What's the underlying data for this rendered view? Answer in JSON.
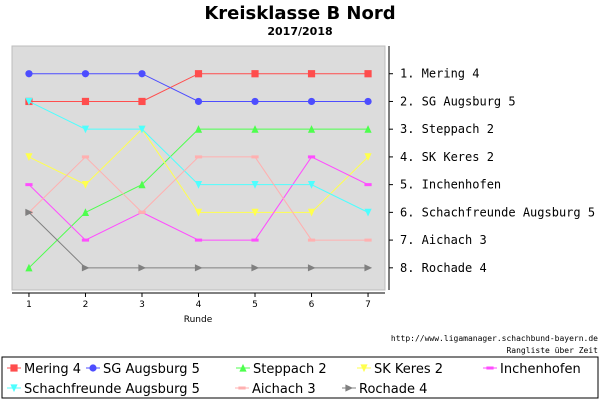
{
  "chart_data": {
    "type": "line",
    "title": "Kreisklasse B Nord",
    "subtitle": "2017/2018",
    "xlabel": "Runde",
    "x": [
      1,
      2,
      3,
      4,
      5,
      6,
      7
    ],
    "xlim": [
      0.7,
      7.3
    ],
    "ylim": [
      0,
      8.8
    ],
    "y_inverted": true,
    "grid": false,
    "legend_position": "bottom",
    "rank_labels": [
      "1. Mering 4",
      "2. SG Augsburg 5",
      "3. Steppach 2",
      "4. SK Keres 2",
      "5. Inchenhofen",
      "6. Schachfreunde Augsburg 5",
      "7. Aichach 3",
      "8. Rochade 4"
    ],
    "series": [
      {
        "name": "Mering 4",
        "color": "#ff4d4d",
        "marker": "square",
        "values": [
          2,
          2,
          2,
          1,
          1,
          1,
          1
        ]
      },
      {
        "name": "SG Augsburg 5",
        "color": "#4d4dff",
        "marker": "circle",
        "values": [
          1,
          1,
          1,
          2,
          2,
          2,
          2
        ]
      },
      {
        "name": "Steppach 2",
        "color": "#4dff4d",
        "marker": "triangle-up",
        "values": [
          8,
          6,
          5,
          3,
          3,
          3,
          3
        ]
      },
      {
        "name": "SK Keres 2",
        "color": "#ffff4d",
        "marker": "triangle-down",
        "values": [
          4,
          5,
          3,
          6,
          6,
          6,
          4
        ]
      },
      {
        "name": "Inchenhofen",
        "color": "#ff4dff",
        "marker": "dash",
        "values": [
          5,
          7,
          6,
          7,
          7,
          4,
          5
        ]
      },
      {
        "name": "Schachfreunde Augsburg 5",
        "color": "#4dffff",
        "marker": "triangle-down",
        "values": [
          2,
          3,
          3,
          5,
          5,
          5,
          6
        ]
      },
      {
        "name": "Aichach 3",
        "color": "#ffb0b0",
        "marker": "dash",
        "values": [
          6,
          4,
          6,
          4,
          4,
          7,
          7
        ]
      },
      {
        "name": "Rochade 4",
        "color": "#808080",
        "marker": "triangle-right",
        "values": [
          6,
          8,
          8,
          8,
          8,
          8,
          8
        ]
      }
    ]
  },
  "footer": {
    "url": "http://www.ligamanager.schachbund-bayern.de",
    "caption": "Rangliste über Zeit"
  }
}
